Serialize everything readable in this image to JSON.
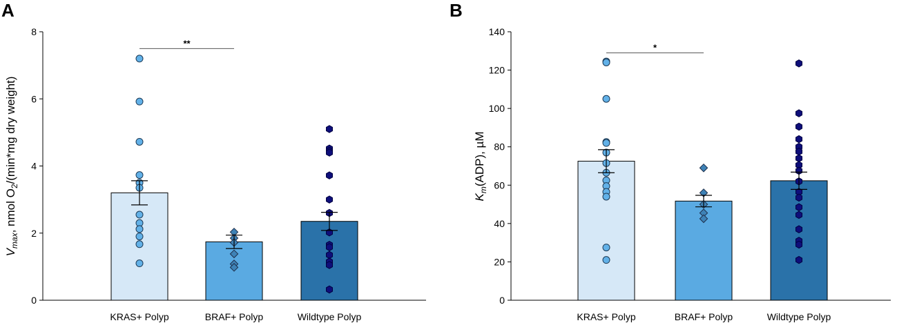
{
  "colors": {
    "kras_bar": "#d6e8f7",
    "braf_bar": "#5aaae2",
    "wt_bar": "#2a72a9",
    "kras_point": "#62b1e8",
    "braf_point": "#3e82b6",
    "wt_point": "#0e0e7a",
    "axis": "#000000",
    "sig_line": "#555555"
  },
  "chart_data": [
    {
      "panel": "A",
      "type": "bar",
      "categories": [
        "KRAS+ Polyp",
        "BRAF+ Polyp",
        "Wildtype Polyp"
      ],
      "ylabel_main": "V",
      "ylabel_sub": "max",
      "ylabel_rest": ", nmol O",
      "ylabel_sub2": "2",
      "ylabel_end": "/(min*mg dry weight)",
      "ylim": [
        0,
        8
      ],
      "yticks": [
        "0",
        "2",
        "4",
        "6",
        "8"
      ],
      "bars": [
        3.2,
        1.74,
        2.35
      ],
      "errors": [
        0.36,
        0.2,
        0.27
      ],
      "markers": [
        "circle",
        "diamond",
        "hexagon"
      ],
      "points": [
        [
          7.2,
          5.92,
          4.72,
          3.73,
          3.5,
          3.35,
          2.55,
          2.3,
          2.12,
          1.9,
          1.67,
          1.1
        ],
        [
          2.03,
          1.85,
          1.72,
          1.38,
          1.08,
          0.98
        ],
        [
          5.1,
          4.52,
          4.45,
          4.4,
          3.72,
          3.0,
          2.6,
          2.02,
          1.65,
          1.58,
          1.35,
          1.15,
          1.05,
          0.32
        ]
      ],
      "significance": {
        "from": 0,
        "to": 1,
        "y": 7.5,
        "label": "**"
      }
    },
    {
      "panel": "B",
      "type": "bar",
      "categories": [
        "KRAS+ Polyp",
        "BRAF+ Polyp",
        "Wildtype Polyp"
      ],
      "ylabel_main": "K",
      "ylabel_sub": "m",
      "ylabel_rest": "(ADP), µM",
      "ylabel_sub2": "",
      "ylabel_end": "",
      "ylim": [
        0,
        140
      ],
      "yticks": [
        "0",
        "20",
        "40",
        "60",
        "80",
        "100",
        "120",
        "140"
      ],
      "bars": [
        72.5,
        51.7,
        62.3
      ],
      "errors": [
        6.0,
        3.0,
        4.5
      ],
      "markers": [
        "circle",
        "diamond",
        "hexagon"
      ],
      "points": [
        [
          124.5,
          124,
          105,
          82.5,
          82,
          77,
          71.5,
          66.5,
          62.5,
          59.5,
          56.5,
          54,
          27.5,
          21
        ],
        [
          69,
          56,
          50,
          45.5,
          42.5
        ],
        [
          123.5,
          97.5,
          90.5,
          84,
          80,
          77.5,
          74,
          70.5,
          67.5,
          62,
          56.5,
          53.5,
          48.5,
          44.5,
          37,
          31,
          29,
          21
        ]
      ],
      "significance": {
        "from": 0,
        "to": 1,
        "y": 129,
        "label": "*"
      }
    }
  ]
}
